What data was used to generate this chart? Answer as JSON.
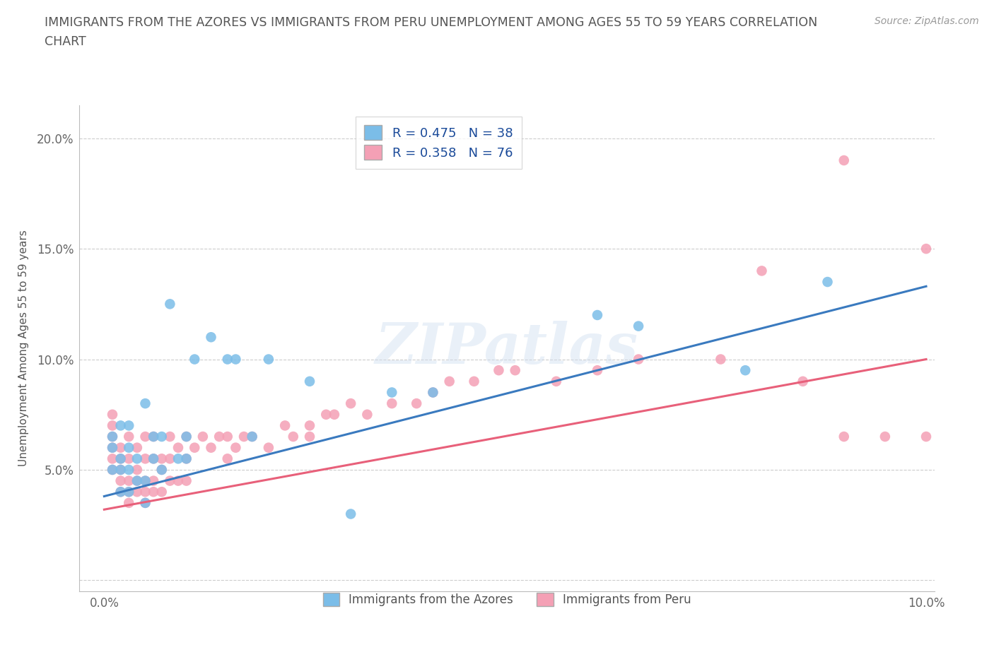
{
  "title": "IMMIGRANTS FROM THE AZORES VS IMMIGRANTS FROM PERU UNEMPLOYMENT AMONG AGES 55 TO 59 YEARS CORRELATION\nCHART",
  "source": "Source: ZipAtlas.com",
  "ylabel": "Unemployment Among Ages 55 to 59 years",
  "xlim": [
    -0.003,
    0.101
  ],
  "ylim": [
    -0.005,
    0.215
  ],
  "xticks": [
    0.0,
    0.02,
    0.04,
    0.06,
    0.08,
    0.1
  ],
  "xtick_labels": [
    "0.0%",
    "",
    "",
    "",
    "",
    "10.0%"
  ],
  "yticks": [
    0.0,
    0.05,
    0.1,
    0.15,
    0.2
  ],
  "ytick_labels": [
    "",
    "5.0%",
    "10.0%",
    "15.0%",
    "20.0%"
  ],
  "azores_R": 0.475,
  "azores_N": 38,
  "peru_R": 0.358,
  "peru_N": 76,
  "azores_color": "#7bbde8",
  "peru_color": "#f4a0b5",
  "azores_line_color": "#3a7abf",
  "peru_line_color": "#e8607a",
  "watermark_text": "ZIPatlas",
  "legend_label_azores": "Immigrants from the Azores",
  "legend_label_peru": "Immigrants from Peru",
  "azores_line_x0": 0.0,
  "azores_line_y0": 0.038,
  "azores_line_x1": 0.1,
  "azores_line_y1": 0.133,
  "peru_line_x0": 0.0,
  "peru_line_y0": 0.032,
  "peru_line_x1": 0.1,
  "peru_line_y1": 0.1,
  "azores_x": [
    0.001,
    0.001,
    0.001,
    0.002,
    0.002,
    0.002,
    0.002,
    0.003,
    0.003,
    0.003,
    0.003,
    0.004,
    0.004,
    0.005,
    0.005,
    0.005,
    0.006,
    0.006,
    0.007,
    0.007,
    0.008,
    0.009,
    0.01,
    0.01,
    0.011,
    0.013,
    0.015,
    0.016,
    0.018,
    0.02,
    0.025,
    0.03,
    0.035,
    0.04,
    0.06,
    0.065,
    0.078,
    0.088
  ],
  "azores_y": [
    0.05,
    0.06,
    0.065,
    0.04,
    0.05,
    0.055,
    0.07,
    0.04,
    0.05,
    0.06,
    0.07,
    0.045,
    0.055,
    0.035,
    0.045,
    0.08,
    0.055,
    0.065,
    0.05,
    0.065,
    0.125,
    0.055,
    0.055,
    0.065,
    0.1,
    0.11,
    0.1,
    0.1,
    0.065,
    0.1,
    0.09,
    0.03,
    0.085,
    0.085,
    0.12,
    0.115,
    0.095,
    0.135
  ],
  "peru_x": [
    0.001,
    0.001,
    0.001,
    0.001,
    0.001,
    0.001,
    0.002,
    0.002,
    0.002,
    0.002,
    0.002,
    0.003,
    0.003,
    0.003,
    0.003,
    0.003,
    0.004,
    0.004,
    0.004,
    0.004,
    0.005,
    0.005,
    0.005,
    0.005,
    0.005,
    0.006,
    0.006,
    0.006,
    0.006,
    0.007,
    0.007,
    0.007,
    0.008,
    0.008,
    0.008,
    0.009,
    0.009,
    0.01,
    0.01,
    0.01,
    0.011,
    0.012,
    0.013,
    0.014,
    0.015,
    0.015,
    0.016,
    0.017,
    0.018,
    0.02,
    0.022,
    0.023,
    0.025,
    0.025,
    0.027,
    0.028,
    0.03,
    0.032,
    0.035,
    0.038,
    0.04,
    0.042,
    0.045,
    0.048,
    0.05,
    0.055,
    0.06,
    0.065,
    0.09,
    0.075,
    0.08,
    0.085,
    0.09,
    0.095,
    0.1,
    0.1
  ],
  "peru_y": [
    0.05,
    0.055,
    0.06,
    0.065,
    0.07,
    0.075,
    0.04,
    0.045,
    0.05,
    0.055,
    0.06,
    0.035,
    0.04,
    0.045,
    0.055,
    0.065,
    0.04,
    0.045,
    0.05,
    0.06,
    0.035,
    0.04,
    0.045,
    0.055,
    0.065,
    0.04,
    0.045,
    0.055,
    0.065,
    0.04,
    0.05,
    0.055,
    0.045,
    0.055,
    0.065,
    0.045,
    0.06,
    0.045,
    0.055,
    0.065,
    0.06,
    0.065,
    0.06,
    0.065,
    0.055,
    0.065,
    0.06,
    0.065,
    0.065,
    0.06,
    0.07,
    0.065,
    0.065,
    0.07,
    0.075,
    0.075,
    0.08,
    0.075,
    0.08,
    0.08,
    0.085,
    0.09,
    0.09,
    0.095,
    0.095,
    0.09,
    0.095,
    0.1,
    0.19,
    0.1,
    0.14,
    0.09,
    0.065,
    0.065,
    0.15,
    0.065
  ]
}
